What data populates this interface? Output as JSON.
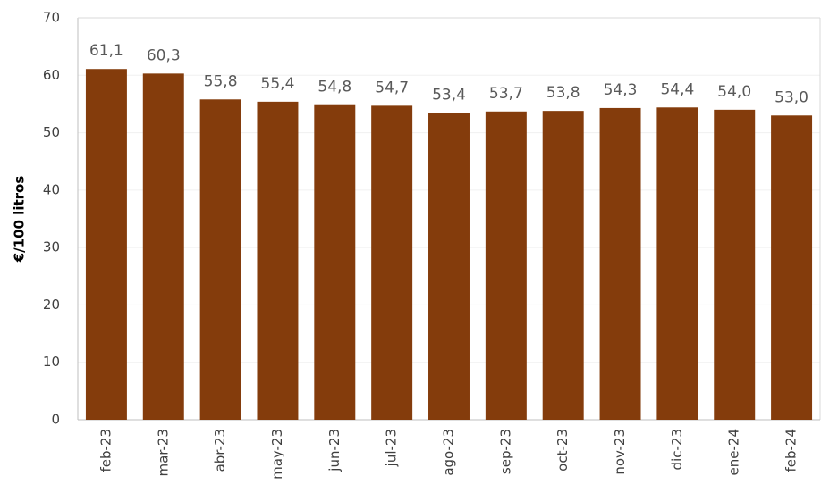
{
  "chart_data": {
    "type": "bar",
    "y_label": "€/100 litros",
    "categories": [
      "feb-23",
      "mar-23",
      "abr-23",
      "may-23",
      "jun-23",
      "jul-23",
      "ago-23",
      "sep-23",
      "oct-23",
      "nov-23",
      "dic-23",
      "ene-24",
      "feb-24"
    ],
    "values": [
      61.1,
      60.3,
      55.8,
      55.4,
      54.8,
      54.7,
      53.4,
      53.7,
      53.8,
      54.3,
      54.4,
      54.0,
      53.0
    ],
    "value_labels": [
      "61,1",
      "60,3",
      "55,8",
      "55,4",
      "54,8",
      "54,7",
      "53,4",
      "53,7",
      "53,8",
      "54,3",
      "54,4",
      "54,0",
      "53,0"
    ],
    "color": "#843c0c",
    "ylim": [
      0,
      70
    ],
    "yticks": [
      0,
      10,
      20,
      30,
      40,
      50,
      60,
      70
    ],
    "grid": true
  }
}
